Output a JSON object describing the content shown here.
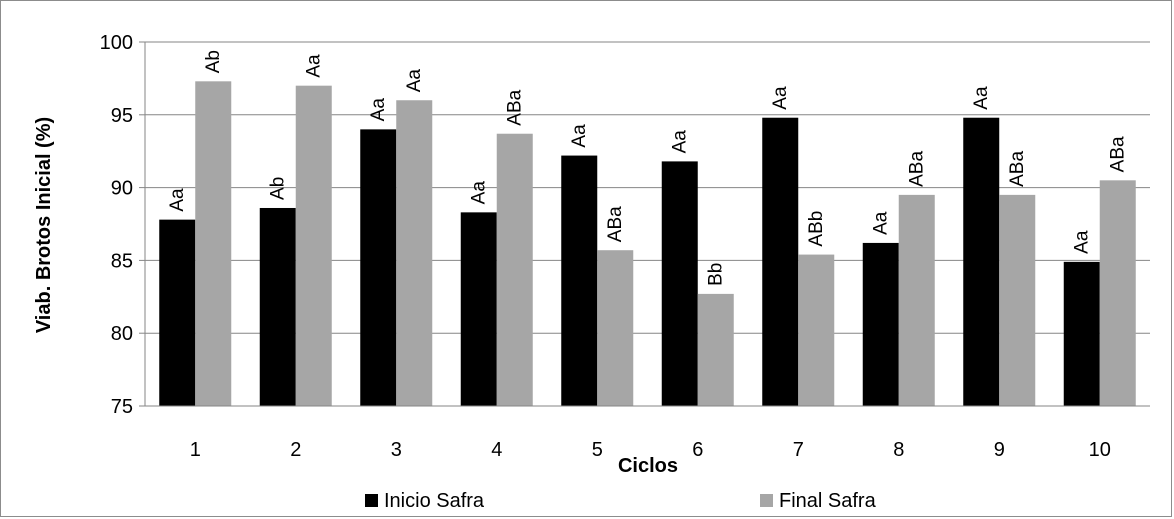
{
  "chart_data": {
    "type": "bar",
    "title": "",
    "xlabel": "Ciclos",
    "ylabel": "Viab. Brotos Inicial (%)",
    "ylim": [
      75,
      100
    ],
    "yticks": [
      75,
      80,
      85,
      90,
      95,
      100
    ],
    "grid": true,
    "legend_position": "bottom",
    "categories": [
      "1",
      "2",
      "3",
      "4",
      "5",
      "6",
      "7",
      "8",
      "9",
      "10"
    ],
    "series": [
      {
        "name": "Inicio Safra",
        "color": "#000000",
        "values": [
          87.8,
          88.6,
          94.0,
          88.3,
          92.2,
          91.8,
          94.8,
          86.2,
          94.8,
          84.9
        ],
        "labels": [
          "Aa",
          "Ab",
          "Aa",
          "Aa",
          "Aa",
          "Aa",
          "Aa",
          "Aa",
          "Aa",
          "Aa"
        ]
      },
      {
        "name": "Final Safra",
        "color": "#a6a6a6",
        "values": [
          97.3,
          97.0,
          96.0,
          93.7,
          85.7,
          82.7,
          85.4,
          89.5,
          89.5,
          90.5
        ],
        "labels": [
          "Ab",
          "Aa",
          "Aa",
          "ABa",
          "ABa",
          "Bb",
          "ABb",
          "ABa",
          "ABa",
          "ABa"
        ]
      }
    ]
  }
}
